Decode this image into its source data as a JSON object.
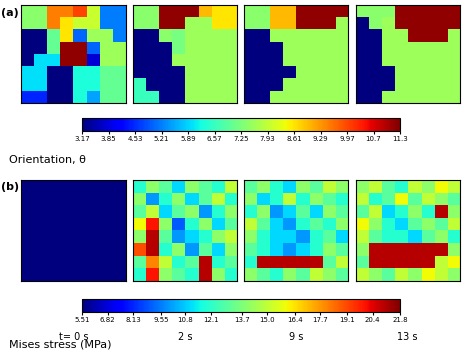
{
  "chart_data": [
    {
      "type": "heatmap",
      "title": "(a)",
      "tick_labels": false,
      "colorbar_label": "Orientation, θ",
      "colorbar_range": [
        3.17,
        11.33
      ],
      "colorbar_ticks": [
        3.17,
        3.85,
        4.53,
        5.21,
        5.89,
        6.57,
        7.25,
        7.93,
        8.61,
        9.29,
        9.97,
        {
          "value": 10.65,
          "label": "10.7"
        },
        {
          "value": 11.33,
          "label": "11.3"
        }
      ],
      "panels": [
        {
          "cells": [
            [
              7.4,
              7.4,
              9.5,
              9.5,
              10.0,
              8.0,
              5.2,
              5.2
            ],
            [
              7.4,
              7.4,
              9.5,
              8.6,
              8.0,
              8.0,
              5.2,
              5.2
            ],
            [
              3.2,
              3.2,
              7.0,
              8.6,
              5.0,
              7.6,
              7.6,
              5.2
            ],
            [
              3.2,
              3.2,
              7.0,
              11.2,
              11.2,
              5.0,
              7.6,
              7.6
            ],
            [
              3.2,
              6.0,
              6.0,
              11.2,
              11.2,
              3.8,
              7.6,
              7.6
            ],
            [
              6.0,
              6.0,
              3.2,
              3.2,
              6.3,
              6.3,
              7.0,
              7.0
            ],
            [
              6.0,
              6.0,
              3.2,
              3.2,
              6.3,
              6.3,
              7.0,
              7.0
            ],
            [
              4.5,
              4.5,
              3.2,
              3.2,
              6.3,
              5.5,
              7.0,
              7.0
            ]
          ]
        },
        {
          "cells": [
            [
              7.4,
              7.4,
              11.2,
              11.2,
              11.2,
              9.0,
              8.6,
              8.6
            ],
            [
              7.4,
              7.4,
              11.2,
              11.2,
              7.6,
              7.6,
              8.6,
              8.6
            ],
            [
              3.2,
              3.2,
              7.4,
              7.2,
              7.6,
              7.6,
              7.6,
              7.6
            ],
            [
              3.2,
              3.2,
              3.2,
              7.2,
              7.6,
              7.6,
              7.6,
              7.6
            ],
            [
              3.2,
              3.2,
              3.2,
              7.6,
              7.6,
              7.6,
              7.6,
              7.6
            ],
            [
              3.2,
              3.2,
              3.2,
              3.2,
              7.6,
              7.6,
              7.6,
              7.6
            ],
            [
              6.6,
              3.2,
              3.2,
              3.2,
              7.6,
              7.6,
              7.6,
              7.6
            ],
            [
              6.6,
              6.6,
              3.2,
              3.2,
              7.6,
              7.6,
              7.6,
              7.6
            ]
          ]
        },
        {
          "cells": [
            [
              7.4,
              7.4,
              9.0,
              9.0,
              11.2,
              11.2,
              11.2,
              11.2
            ],
            [
              7.4,
              7.4,
              9.0,
              9.0,
              11.2,
              11.2,
              11.2,
              7.6
            ],
            [
              3.2,
              3.2,
              7.6,
              7.6,
              7.6,
              7.6,
              7.6,
              7.6
            ],
            [
              3.2,
              3.2,
              3.2,
              7.6,
              7.6,
              7.6,
              7.6,
              7.6
            ],
            [
              3.2,
              3.2,
              3.2,
              7.6,
              7.6,
              7.6,
              7.6,
              7.6
            ],
            [
              3.2,
              3.2,
              3.2,
              3.2,
              7.6,
              7.6,
              7.6,
              7.6
            ],
            [
              3.2,
              3.2,
              3.2,
              7.6,
              7.6,
              7.6,
              7.6,
              7.6
            ],
            [
              3.2,
              3.2,
              7.6,
              7.6,
              7.6,
              7.6,
              7.6,
              7.6
            ]
          ]
        },
        {
          "cells": [
            [
              7.4,
              7.4,
              7.4,
              11.2,
              11.2,
              11.2,
              11.2,
              11.2
            ],
            [
              3.2,
              7.4,
              7.6,
              11.2,
              11.2,
              11.2,
              11.2,
              11.2
            ],
            [
              3.2,
              3.2,
              7.6,
              7.6,
              11.2,
              11.2,
              11.2,
              7.6
            ],
            [
              3.2,
              3.2,
              7.6,
              7.6,
              7.6,
              7.6,
              7.6,
              7.6
            ],
            [
              3.2,
              3.2,
              7.6,
              7.6,
              7.6,
              7.6,
              7.6,
              7.6
            ],
            [
              3.2,
              3.2,
              3.2,
              7.6,
              7.6,
              7.6,
              7.6,
              7.6
            ],
            [
              3.2,
              3.2,
              3.2,
              7.6,
              7.6,
              7.6,
              7.6,
              7.6
            ],
            [
              3.2,
              3.2,
              7.6,
              7.6,
              7.6,
              7.6,
              7.6,
              7.6
            ]
          ]
        }
      ]
    },
    {
      "type": "heatmap",
      "title": "(b)",
      "tick_labels": false,
      "colorbar_label": "Mises stress (MPa)",
      "colorbar_range": [
        5.51,
        21.8
      ],
      "colorbar_ticks": [
        5.51,
        6.82,
        8.13,
        9.55,
        10.8,
        12.1,
        13.7,
        15.0,
        16.4,
        17.7,
        19.1,
        20.4,
        21.8
      ],
      "panels": [
        {
          "time": "t= 0 s",
          "cells": [
            [
              5.51,
              5.51,
              5.51,
              5.51,
              5.51,
              5.51,
              5.51,
              5.51
            ],
            [
              5.51,
              5.51,
              5.51,
              5.51,
              5.51,
              5.51,
              5.51,
              5.51
            ],
            [
              5.51,
              5.51,
              5.51,
              5.51,
              5.51,
              5.51,
              5.51,
              5.51
            ],
            [
              5.51,
              5.51,
              5.51,
              5.51,
              5.51,
              5.51,
              5.51,
              5.51
            ],
            [
              5.51,
              5.51,
              5.51,
              5.51,
              5.51,
              5.51,
              5.51,
              5.51
            ],
            [
              5.51,
              5.51,
              5.51,
              5.51,
              5.51,
              5.51,
              5.51,
              5.51
            ],
            [
              5.51,
              5.51,
              5.51,
              5.51,
              5.51,
              5.51,
              5.51,
              5.51
            ],
            [
              5.51,
              5.51,
              5.51,
              5.51,
              5.51,
              5.51,
              5.51,
              5.51
            ]
          ]
        },
        {
          "time": "2 s",
          "cells": [
            [
              12,
              14,
              13,
              11,
              14,
              13,
              12,
              15
            ],
            [
              14,
              10,
              12,
              14,
              11,
              13,
              15,
              12
            ],
            [
              13,
              15,
              11,
              13,
              14,
              10,
              12,
              14
            ],
            [
              16,
              20,
              14,
              9,
              12,
              14,
              11,
              13
            ],
            [
              14,
              21,
              13,
              10,
              11,
              12,
              14,
              15
            ],
            [
              19,
              21,
              12,
              14,
              10,
              13,
              11,
              14
            ],
            [
              13,
              18,
              15,
              12,
              13,
              21,
              12,
              13
            ],
            [
              12,
              20,
              14,
              13,
              12,
              21,
              14,
              12
            ]
          ]
        },
        {
          "time": "9 s",
          "cells": [
            [
              13,
              14,
              12,
              11,
              14,
              13,
              15,
              14
            ],
            [
              14,
              11,
              12,
              15,
              12,
              14,
              13,
              12
            ],
            [
              12,
              14,
              10,
              11,
              13,
              11,
              14,
              13
            ],
            [
              15,
              13,
              11,
              10,
              12,
              13,
              12,
              14
            ],
            [
              14,
              12,
              11,
              11,
              10,
              12,
              13,
              11
            ],
            [
              13,
              12,
              11,
              10,
              11,
              12,
              14,
              13
            ],
            [
              12,
              21,
              21,
              21,
              21,
              21,
              13,
              15
            ],
            [
              14,
              13,
              12,
              14,
              13,
              15,
              14,
              13
            ]
          ]
        },
        {
          "time": "13 s",
          "cells": [
            [
              14,
              15,
              13,
              12,
              15,
              14,
              16,
              15
            ],
            [
              15,
              12,
              13,
              16,
              13,
              15,
              14,
              13
            ],
            [
              13,
              15,
              11,
              12,
              14,
              12,
              21,
              14
            ],
            [
              16,
              14,
              12,
              11,
              13,
              14,
              13,
              15
            ],
            [
              15,
              13,
              12,
              12,
              11,
              13,
              14,
              12
            ],
            [
              14,
              21,
              21,
              21,
              21,
              21,
              21,
              14
            ],
            [
              13,
              21,
              21,
              21,
              21,
              21,
              15,
              16
            ],
            [
              15,
              14,
              13,
              15,
              14,
              16,
              15,
              14
            ]
          ]
        }
      ]
    }
  ]
}
